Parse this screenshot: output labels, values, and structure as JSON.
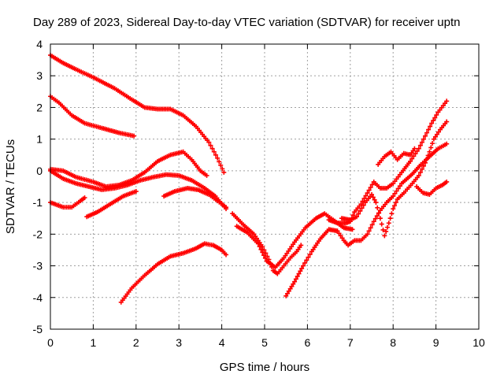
{
  "chart_data": {
    "type": "scatter",
    "title": "Day 289 of 2023, Sidereal Day-to-day VTEC variation (SDTVAR) for receiver uptn",
    "xlabel": "GPS time / hours",
    "ylabel": "SDTVAR / TECUs",
    "xlim": [
      0,
      10
    ],
    "ylim": [
      -5,
      4
    ],
    "xticks": [
      "0",
      "1",
      "2",
      "3",
      "4",
      "5",
      "6",
      "7",
      "8",
      "9",
      "10"
    ],
    "yticks": [
      "4",
      "3",
      "2",
      "1",
      "0",
      "-1",
      "-2",
      "-3",
      "-4",
      "-5"
    ],
    "grid": true,
    "marker": "+",
    "color": "#ff0000",
    "series": [
      {
        "name": "s1",
        "points": [
          [
            0,
            3.65
          ],
          [
            0.3,
            3.4
          ],
          [
            0.6,
            3.2
          ],
          [
            1.0,
            2.95
          ],
          [
            1.5,
            2.6
          ],
          [
            1.9,
            2.25
          ],
          [
            2.2,
            2.0
          ],
          [
            2.5,
            1.95
          ],
          [
            2.8,
            1.95
          ],
          [
            3.1,
            1.75
          ],
          [
            3.4,
            1.4
          ],
          [
            3.7,
            0.9
          ],
          [
            3.9,
            0.4
          ],
          [
            4.05,
            -0.05
          ]
        ]
      },
      {
        "name": "s2",
        "points": [
          [
            0,
            2.35
          ],
          [
            0.2,
            2.15
          ],
          [
            0.5,
            1.75
          ],
          [
            0.8,
            1.5
          ],
          [
            1.2,
            1.35
          ],
          [
            1.6,
            1.2
          ],
          [
            1.95,
            1.1
          ]
        ]
      },
      {
        "name": "s3",
        "points": [
          [
            0,
            0.05
          ],
          [
            0.3,
            0.0
          ],
          [
            0.6,
            -0.2
          ],
          [
            1.0,
            -0.35
          ],
          [
            1.3,
            -0.5
          ],
          [
            1.6,
            -0.45
          ],
          [
            1.9,
            -0.3
          ],
          [
            2.2,
            -0.05
          ],
          [
            2.5,
            0.3
          ],
          [
            2.8,
            0.5
          ],
          [
            3.1,
            0.6
          ],
          [
            3.3,
            0.35
          ],
          [
            3.5,
            0.0
          ],
          [
            3.65,
            -0.15
          ]
        ]
      },
      {
        "name": "s4",
        "points": [
          [
            0,
            0.0
          ],
          [
            0.3,
            -0.25
          ],
          [
            0.6,
            -0.4
          ],
          [
            0.9,
            -0.5
          ],
          [
            1.2,
            -0.6
          ],
          [
            1.5,
            -0.55
          ],
          [
            1.8,
            -0.45
          ],
          [
            2.1,
            -0.3
          ],
          [
            2.4,
            -0.2
          ],
          [
            2.7,
            -0.12
          ],
          [
            3.0,
            -0.15
          ],
          [
            3.3,
            -0.3
          ],
          [
            3.6,
            -0.55
          ],
          [
            3.85,
            -0.8
          ],
          [
            4.1,
            -1.2
          ]
        ]
      },
      {
        "name": "s5",
        "points": [
          [
            0,
            -1.0
          ],
          [
            0.3,
            -1.15
          ],
          [
            0.5,
            -1.15
          ],
          [
            0.7,
            -0.95
          ],
          [
            0.8,
            -0.85
          ]
        ]
      },
      {
        "name": "s6",
        "points": [
          [
            0.85,
            -1.45
          ],
          [
            1.1,
            -1.3
          ],
          [
            1.4,
            -1.05
          ],
          [
            1.7,
            -0.8
          ],
          [
            2.0,
            -0.65
          ]
        ]
      },
      {
        "name": "s7",
        "points": [
          [
            2.65,
            -0.8
          ],
          [
            2.9,
            -0.65
          ],
          [
            3.2,
            -0.55
          ],
          [
            3.45,
            -0.6
          ],
          [
            3.7,
            -0.75
          ],
          [
            3.9,
            -0.95
          ],
          [
            4.1,
            -1.15
          ]
        ]
      },
      {
        "name": "s8",
        "points": [
          [
            1.65,
            -4.15
          ],
          [
            1.9,
            -3.7
          ],
          [
            2.2,
            -3.3
          ],
          [
            2.5,
            -2.95
          ],
          [
            2.8,
            -2.7
          ],
          [
            3.1,
            -2.6
          ],
          [
            3.4,
            -2.45
          ],
          [
            3.6,
            -2.3
          ],
          [
            3.8,
            -2.35
          ],
          [
            4.0,
            -2.5
          ],
          [
            4.1,
            -2.65
          ]
        ]
      },
      {
        "name": "s9",
        "points": [
          [
            4.25,
            -1.35
          ],
          [
            4.5,
            -1.7
          ],
          [
            4.75,
            -2.0
          ],
          [
            4.95,
            -2.4
          ],
          [
            5.1,
            -2.8
          ],
          [
            5.2,
            -3.15
          ],
          [
            5.3,
            -3.25
          ],
          [
            5.45,
            -3.0
          ],
          [
            5.6,
            -2.75
          ],
          [
            5.75,
            -2.55
          ],
          [
            5.85,
            -2.35
          ]
        ]
      },
      {
        "name": "s10",
        "points": [
          [
            4.35,
            -1.75
          ],
          [
            4.6,
            -1.95
          ],
          [
            4.85,
            -2.3
          ],
          [
            5.05,
            -2.85
          ],
          [
            5.25,
            -3.05
          ],
          [
            5.45,
            -2.75
          ],
          [
            5.7,
            -2.25
          ],
          [
            5.95,
            -1.8
          ],
          [
            6.2,
            -1.5
          ],
          [
            6.4,
            -1.35
          ],
          [
            6.6,
            -1.55
          ],
          [
            6.85,
            -1.8
          ],
          [
            7.05,
            -1.85
          ]
        ]
      },
      {
        "name": "s11",
        "points": [
          [
            5.5,
            -3.95
          ],
          [
            5.7,
            -3.5
          ],
          [
            5.9,
            -3.0
          ],
          [
            6.1,
            -2.55
          ],
          [
            6.3,
            -2.15
          ],
          [
            6.5,
            -1.85
          ],
          [
            6.7,
            -1.9
          ],
          [
            6.85,
            -2.2
          ],
          [
            6.95,
            -2.35
          ],
          [
            7.1,
            -2.2
          ],
          [
            7.25,
            -2.2
          ],
          [
            7.4,
            -2.0
          ],
          [
            7.55,
            -1.6
          ],
          [
            7.7,
            -1.25
          ],
          [
            7.85,
            -1.0
          ],
          [
            8.0,
            -0.8
          ],
          [
            8.2,
            -0.4
          ],
          [
            8.45,
            -0.1
          ],
          [
            8.65,
            0.2
          ],
          [
            8.85,
            0.45
          ],
          [
            9.05,
            0.7
          ],
          [
            9.25,
            0.85
          ]
        ]
      },
      {
        "name": "s12",
        "points": [
          [
            6.5,
            -1.55
          ],
          [
            6.7,
            -1.65
          ],
          [
            6.9,
            -1.65
          ],
          [
            7.0,
            -1.6
          ],
          [
            7.1,
            -1.3
          ],
          [
            7.25,
            -1.05
          ],
          [
            7.4,
            -0.7
          ],
          [
            7.55,
            -0.35
          ],
          [
            7.7,
            -0.55
          ],
          [
            7.85,
            -0.55
          ],
          [
            8.0,
            -0.4
          ],
          [
            8.2,
            -0.05
          ],
          [
            8.4,
            0.3
          ],
          [
            8.6,
            0.7
          ],
          [
            8.75,
            1.1
          ],
          [
            8.9,
            1.5
          ],
          [
            9.05,
            1.85
          ],
          [
            9.25,
            2.2
          ]
        ]
      },
      {
        "name": "s13",
        "points": [
          [
            6.8,
            -1.5
          ],
          [
            7.0,
            -1.55
          ],
          [
            7.15,
            -1.45
          ],
          [
            7.35,
            -1.0
          ],
          [
            7.5,
            -0.75
          ],
          [
            7.6,
            -1.0
          ],
          [
            7.7,
            -1.5
          ],
          [
            7.8,
            -2.05
          ],
          [
            7.9,
            -1.65
          ],
          [
            8.0,
            -1.2
          ],
          [
            8.1,
            -0.9
          ],
          [
            8.25,
            -0.7
          ],
          [
            8.45,
            -0.4
          ],
          [
            8.6,
            -0.15
          ],
          [
            8.75,
            0.25
          ],
          [
            8.85,
            0.6
          ],
          [
            8.95,
            1.0
          ],
          [
            9.1,
            1.3
          ],
          [
            9.25,
            1.55
          ]
        ]
      },
      {
        "name": "s14",
        "points": [
          [
            7.65,
            0.2
          ],
          [
            7.8,
            0.45
          ],
          [
            7.95,
            0.6
          ],
          [
            8.1,
            0.35
          ],
          [
            8.25,
            0.55
          ],
          [
            8.4,
            0.5
          ],
          [
            8.5,
            0.7
          ]
        ]
      },
      {
        "name": "s15",
        "points": [
          [
            8.55,
            -0.5
          ],
          [
            8.7,
            -0.7
          ],
          [
            8.85,
            -0.75
          ],
          [
            9.0,
            -0.55
          ],
          [
            9.15,
            -0.45
          ],
          [
            9.25,
            -0.35
          ]
        ]
      }
    ]
  }
}
